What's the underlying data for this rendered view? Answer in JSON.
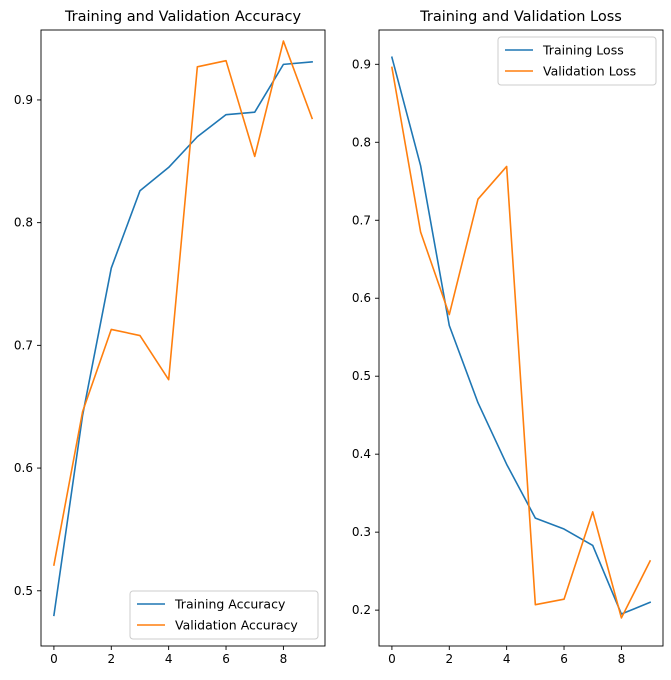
{
  "colors": {
    "training": "#1f77b4",
    "validation": "#ff7f0e"
  },
  "chart_data": [
    {
      "type": "line",
      "title": "Training and Validation Accuracy",
      "xlabel": "",
      "ylabel": "",
      "x": [
        0,
        1,
        2,
        3,
        4,
        5,
        6,
        7,
        8,
        9
      ],
      "xlim": [
        -0.45,
        9.45
      ],
      "ylim": [
        0.455,
        0.957
      ],
      "xticks": [
        0,
        2,
        4,
        6,
        8
      ],
      "yticks": [
        0.5,
        0.6,
        0.7,
        0.8,
        0.9
      ],
      "ytick_labels": [
        "0.5",
        "0.6",
        "0.7",
        "0.8",
        "0.9"
      ],
      "grid": false,
      "legend_position": "lower right",
      "series": [
        {
          "name": "Training Accuracy",
          "color": "#1f77b4",
          "values": [
            0.48,
            0.643,
            0.763,
            0.826,
            0.845,
            0.87,
            0.888,
            0.89,
            0.929,
            0.931
          ]
        },
        {
          "name": "Validation Accuracy",
          "color": "#ff7f0e",
          "values": [
            0.521,
            0.646,
            0.713,
            0.708,
            0.672,
            0.927,
            0.932,
            0.854,
            0.948,
            0.885
          ]
        }
      ]
    },
    {
      "type": "line",
      "title": "Training and Validation Loss",
      "xlabel": "",
      "ylabel": "",
      "x": [
        0,
        1,
        2,
        3,
        4,
        5,
        6,
        7,
        8,
        9
      ],
      "xlim": [
        -0.45,
        9.45
      ],
      "ylim": [
        0.154,
        0.944
      ],
      "xticks": [
        0,
        2,
        4,
        6,
        8
      ],
      "yticks": [
        0.2,
        0.3,
        0.4,
        0.5,
        0.6,
        0.7,
        0.8,
        0.9
      ],
      "ytick_labels": [
        "0.2",
        "0.3",
        "0.4",
        "0.5",
        "0.6",
        "0.7",
        "0.8",
        "0.9"
      ],
      "grid": false,
      "legend_position": "upper right",
      "series": [
        {
          "name": "Training Loss",
          "color": "#1f77b4",
          "values": [
            0.909,
            0.77,
            0.565,
            0.466,
            0.387,
            0.318,
            0.304,
            0.283,
            0.195,
            0.21
          ]
        },
        {
          "name": "Validation Loss",
          "color": "#ff7f0e",
          "values": [
            0.896,
            0.685,
            0.579,
            0.727,
            0.769,
            0.207,
            0.214,
            0.326,
            0.19,
            0.263
          ]
        }
      ]
    }
  ]
}
